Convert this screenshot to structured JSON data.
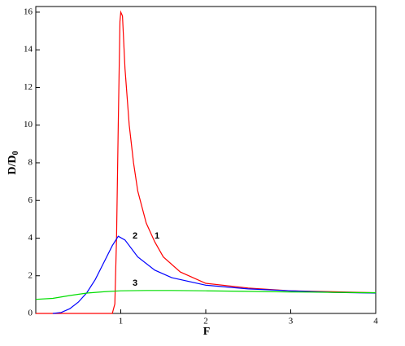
{
  "chart_data": {
    "type": "line",
    "xlabel": "F",
    "ylabel": "D/D",
    "ylabel_sub": "0",
    "xlim": [
      0,
      4
    ],
    "ylim": [
      0,
      16.3
    ],
    "xticks": [
      1,
      2,
      3,
      4
    ],
    "yticks": [
      0,
      2,
      4,
      6,
      8,
      10,
      12,
      14,
      16
    ],
    "series": [
      {
        "name": "1",
        "color": "#ff0000",
        "x": [
          0,
          0.9,
          0.93,
          0.95,
          0.97,
          0.99,
          1.0,
          1.02,
          1.05,
          1.1,
          1.15,
          1.2,
          1.3,
          1.4,
          1.5,
          1.7,
          2.0,
          2.5,
          3.0,
          3.5,
          4.0
        ],
        "values": [
          0,
          0,
          0.5,
          4,
          10,
          15.5,
          16,
          15.8,
          13,
          10,
          8,
          6.5,
          4.8,
          3.8,
          3.0,
          2.2,
          1.6,
          1.35,
          1.2,
          1.15,
          1.1
        ]
      },
      {
        "name": "2",
        "color": "#0000ff",
        "x": [
          0.2,
          0.3,
          0.4,
          0.5,
          0.6,
          0.7,
          0.8,
          0.9,
          0.97,
          1.05,
          1.2,
          1.4,
          1.6,
          2.0,
          2.5,
          3.0,
          3.5,
          4.0
        ],
        "values": [
          0,
          0.05,
          0.25,
          0.6,
          1.1,
          1.8,
          2.7,
          3.6,
          4.1,
          3.9,
          3.0,
          2.3,
          1.9,
          1.5,
          1.3,
          1.2,
          1.12,
          1.08
        ]
      },
      {
        "name": "3",
        "color": "#00dd00",
        "x": [
          0,
          0.2,
          0.4,
          0.6,
          0.8,
          1.0,
          1.3,
          1.6,
          2.0,
          2.5,
          3.0,
          3.5,
          4.0
        ],
        "values": [
          0.75,
          0.8,
          0.95,
          1.08,
          1.15,
          1.2,
          1.22,
          1.22,
          1.2,
          1.17,
          1.14,
          1.12,
          1.1
        ]
      }
    ]
  }
}
